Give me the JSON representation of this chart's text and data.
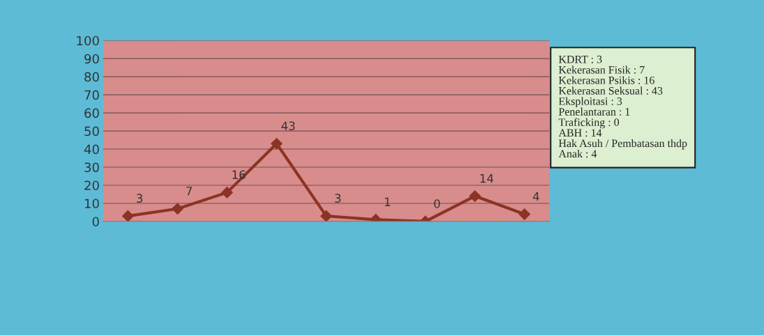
{
  "chart_data": {
    "type": "line",
    "categories": [
      null,
      null,
      null,
      null,
      null,
      null,
      null,
      null,
      null
    ],
    "series": [
      {
        "color": "#8b3426",
        "values": [
          3,
          7,
          16,
          43,
          3,
          1,
          0,
          14,
          4
        ]
      }
    ],
    "ylim": [
      0,
      100
    ],
    "yticks": [
      0,
      10,
      20,
      30,
      40,
      50,
      60,
      70,
      80,
      90,
      100
    ],
    "grid": "y",
    "marker": "diamond",
    "line_style": "solid",
    "data_labels": true,
    "legend": false,
    "annotations": [
      "KDRT : 3",
      "Kekerasan Fisik : 7",
      "Kekerasan Psikis : 16",
      "Kekerasan Seksual : 43",
      "Eksploitasi : 3",
      "Penelantaran : 1",
      "Traficking : 0",
      "ABH : 14",
      "Hak Asuh / Pembatasan thdp\nAnak : 4"
    ]
  }
}
